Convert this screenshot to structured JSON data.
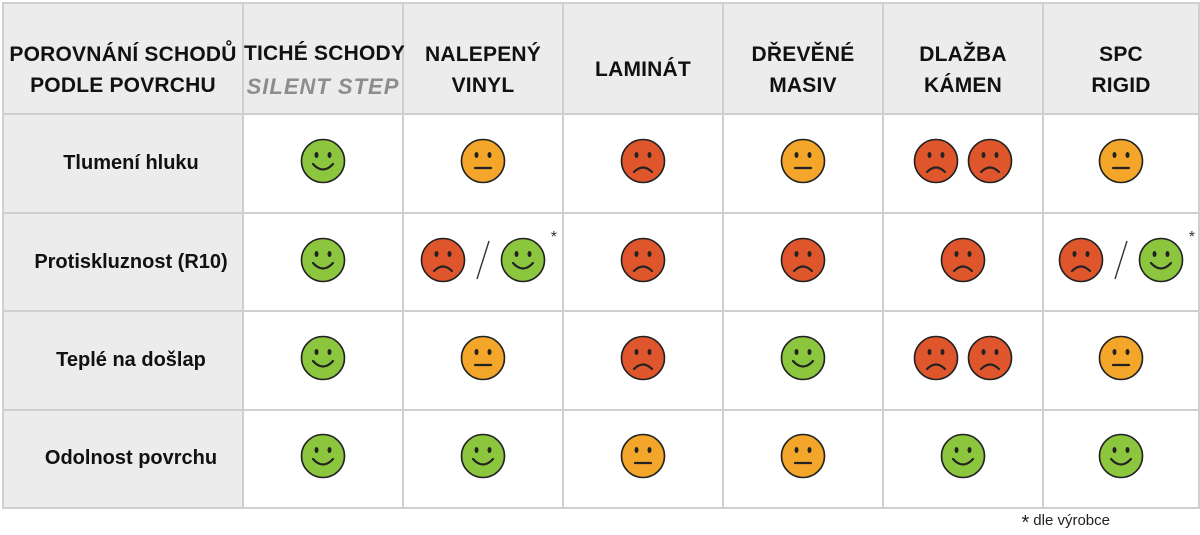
{
  "colors": {
    "good": "#8cc63f",
    "neutral": "#f3a629",
    "bad": "#e0562c",
    "header_bg": "#ececec",
    "border": "#cfcfcf"
  },
  "header": {
    "corner": [
      "POROVNÁNÍ SCHODŮ",
      "PODLE POVRCHU"
    ],
    "columns": [
      {
        "lines": [
          "TICHÉ SCHODY"
        ],
        "brand": "SILENT STEP"
      },
      {
        "lines": [
          "NALEPENÝ",
          "VINYL"
        ]
      },
      {
        "lines": [
          "LAMINÁT"
        ]
      },
      {
        "lines": [
          "DŘEVĚNÉ",
          "MASIV"
        ]
      },
      {
        "lines": [
          "DLAŽBA",
          "KÁMEN"
        ]
      },
      {
        "lines": [
          "SPC",
          "RIGID"
        ]
      }
    ]
  },
  "rows": [
    {
      "label": "Tlumení hluku",
      "cells": [
        "good",
        "neutral",
        "bad",
        "neutral",
        "bad bad",
        "neutral"
      ]
    },
    {
      "label": "Protiskluznost (R10)",
      "cells": [
        "good",
        "bad/good*",
        "bad",
        "bad",
        "bad",
        "bad/good*"
      ]
    },
    {
      "label": "Teplé na došlap",
      "cells": [
        "good",
        "neutral",
        "bad",
        "good",
        "bad bad",
        "neutral"
      ]
    },
    {
      "label": "Odolnost povrchu",
      "cells": [
        "good",
        "good",
        "neutral",
        "neutral",
        "good",
        "good"
      ]
    }
  ],
  "footnote": {
    "mark": "*",
    "text": "dle výrobce"
  }
}
